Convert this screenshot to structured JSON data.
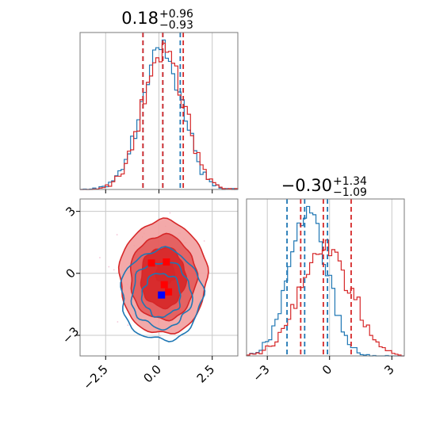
{
  "chart_data": {
    "type": "corner",
    "colors": {
      "blue": "#1f77b4",
      "red": "#d62728",
      "fill_light": "#f2a0a0",
      "fill_mid": "#e25a5a",
      "fill_dark": "#d62728",
      "grid": "#c8c8c8",
      "scatter": "#f4c6d8"
    },
    "panels": [
      {
        "id": "marginal-1",
        "type": "histogram",
        "title": {
          "value": "0.18",
          "upper": "+0.96",
          "lower": "−0.93"
        },
        "xlim": [
          -3.7,
          3.7
        ],
        "grid_x": [
          -2.5,
          0.0,
          2.5
        ],
        "series": [
          {
            "color": "blue",
            "quantiles": [
              -0.75,
              0.18,
              1.0
            ],
            "mu": 0.12,
            "sigma": 0.95
          },
          {
            "color": "red",
            "quantiles": [
              -0.75,
              0.18,
              1.14
            ],
            "mu": 0.2,
            "sigma": 0.95
          }
        ]
      },
      {
        "id": "marginal-2",
        "type": "histogram",
        "title": {
          "value": "−0.30",
          "upper": "+1.34",
          "lower": "−1.09"
        },
        "xlim": [
          -4.0,
          3.6
        ],
        "xticks": [
          -3,
          0,
          3
        ],
        "xtick_labels": [
          "−3",
          "0",
          "3"
        ],
        "grid_x": [
          -3,
          0,
          3
        ],
        "series": [
          {
            "color": "blue",
            "quantiles": [
              -2.05,
              -1.2,
              -0.1
            ],
            "mu": -1.05,
            "sigma": 0.9
          },
          {
            "color": "red",
            "quantiles": [
              -1.39,
              -0.3,
              1.04
            ],
            "mu": -0.2,
            "sigma": 1.2
          }
        ]
      },
      {
        "id": "joint-2d",
        "type": "contour",
        "xlim": [
          -3.7,
          3.7
        ],
        "ylim": [
          -4.0,
          3.6
        ],
        "xticks": [
          -2.5,
          0.0,
          2.5
        ],
        "xtick_labels": [
          "−2.5",
          "0.0",
          "2.5"
        ],
        "yticks": [
          -3,
          0,
          3
        ],
        "ytick_labels": [
          "−3",
          "0",
          "3"
        ],
        "blue_center": [
          0.12,
          -1.05
        ],
        "red_center": [
          0.2,
          -0.2
        ],
        "markers": [
          {
            "color": "red",
            "x": -0.35,
            "y": 0.5
          },
          {
            "color": "red",
            "x": 0.35,
            "y": 0.55
          },
          {
            "color": "red",
            "x": 0.25,
            "y": -0.55
          },
          {
            "color": "red",
            "x": 0.45,
            "y": -0.9
          },
          {
            "color": "blue",
            "x": 0.12,
            "y": -1.05
          }
        ]
      }
    ]
  }
}
